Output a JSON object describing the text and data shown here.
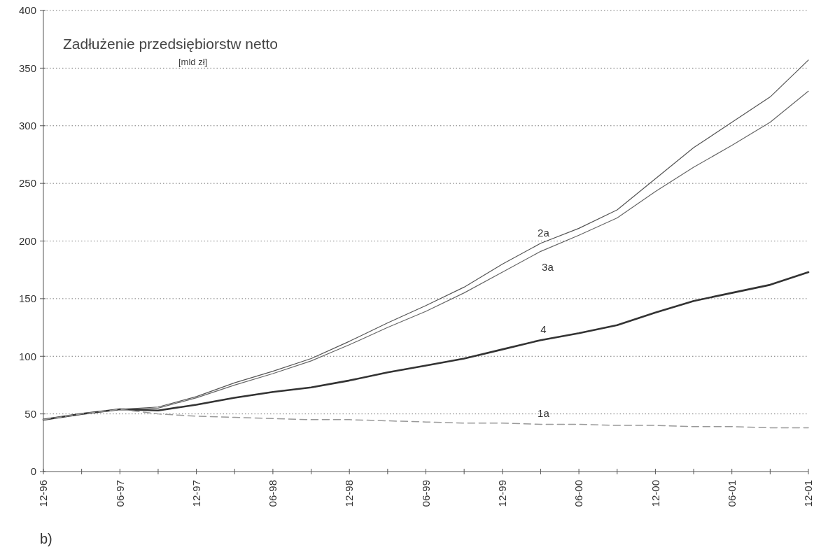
{
  "chart_data": {
    "type": "line",
    "title": "Zadłużenie przedsiębiorstw netto",
    "subtitle": "[mld zł]",
    "categories": [
      "12-96",
      null,
      "06-97",
      null,
      "12-97",
      null,
      "06-98",
      null,
      "12-98",
      null,
      "06-99",
      null,
      "12-99",
      null,
      "06-00",
      null,
      "12-00",
      null,
      "06-01",
      null,
      "12-01"
    ],
    "series": [
      {
        "name": "2a",
        "color": "#555555",
        "values": [
          45,
          50,
          54,
          56,
          65,
          77,
          87,
          98,
          113,
          129,
          144,
          160,
          180,
          198,
          211,
          227,
          254,
          281,
          303,
          325,
          357
        ]
      },
      {
        "name": "3a",
        "color": "#666666",
        "values": [
          45,
          50,
          54,
          55,
          64,
          75,
          85,
          96,
          110,
          125,
          139,
          155,
          173,
          191,
          205,
          220,
          243,
          264,
          283,
          303,
          330
        ]
      },
      {
        "name": "4",
        "color": "#333333",
        "values": [
          45,
          50,
          54,
          53,
          58,
          64,
          69,
          73,
          79,
          86,
          92,
          98,
          106,
          114,
          120,
          127,
          138,
          148,
          155,
          162,
          173
        ]
      },
      {
        "name": "1a",
        "color": "#999999",
        "line_style": "dashed",
        "values": [
          45,
          50,
          54,
          50,
          48,
          47,
          46,
          45,
          45,
          44,
          43,
          42,
          42,
          41,
          41,
          40,
          40,
          39,
          39,
          38,
          38
        ]
      }
    ],
    "ylim": [
      0,
      400
    ],
    "yticks": [
      0,
      50,
      100,
      150,
      200,
      250,
      300,
      350,
      400
    ],
    "grid": "y",
    "marker": "none",
    "annotations": [
      "b)"
    ]
  }
}
